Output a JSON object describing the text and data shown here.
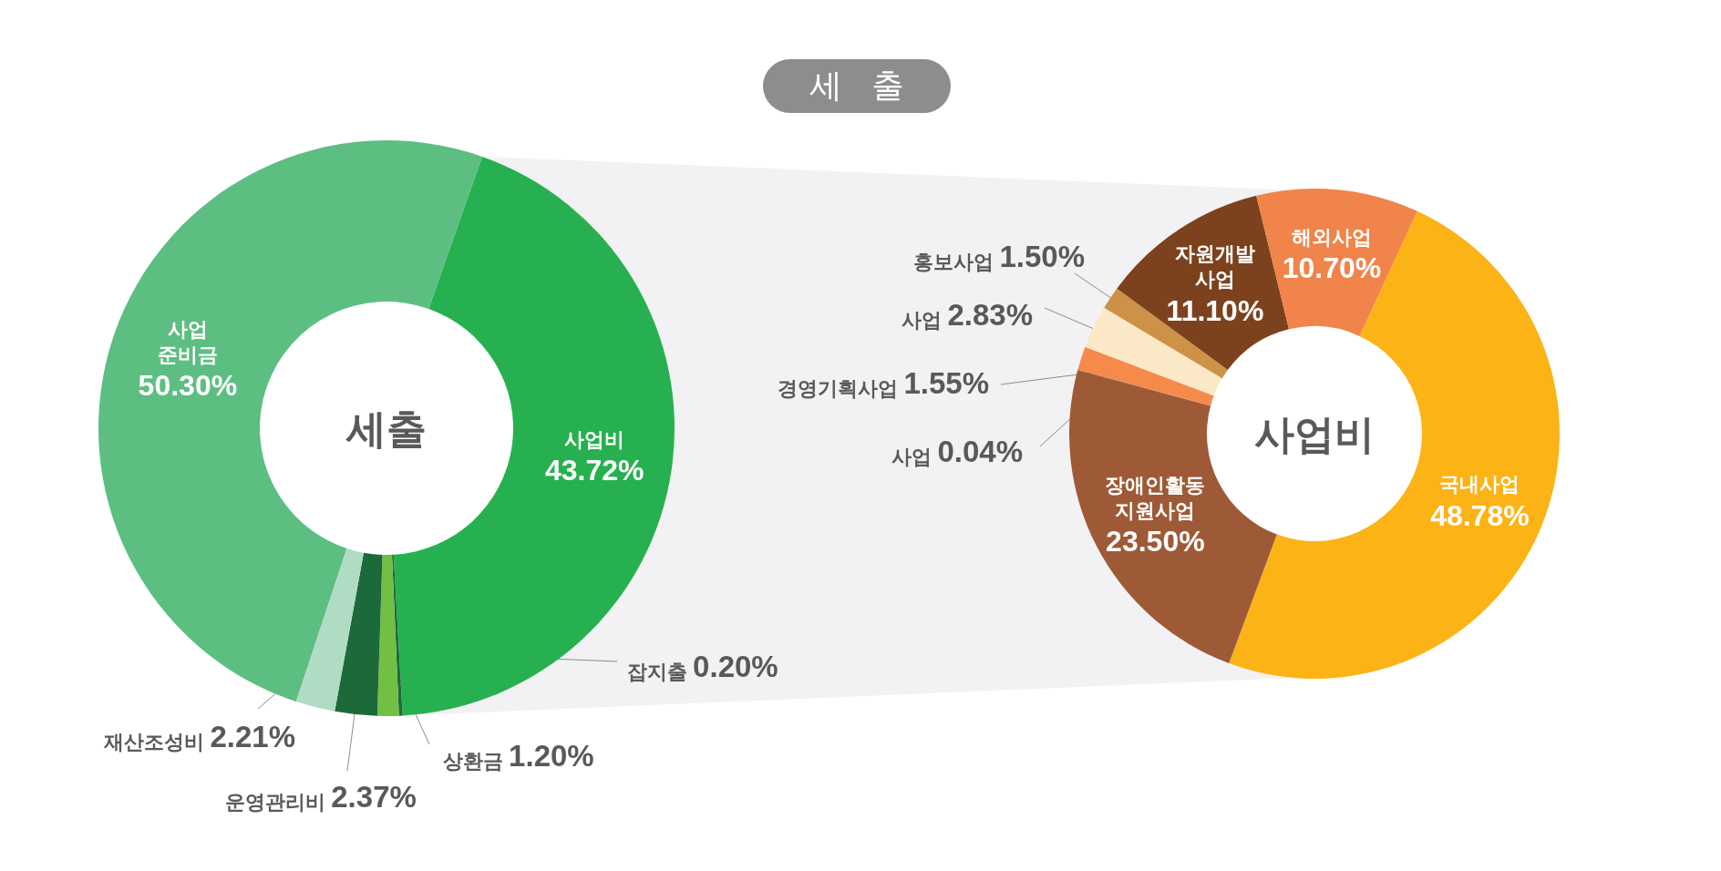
{
  "chart_data": [
    {
      "type": "donut",
      "title": "세 출",
      "annotations": [
        "세출"
      ],
      "categories": [
        "사업비",
        "잡지출",
        "상환금",
        "운영관리비",
        "재산조성비",
        "사업\n준비금"
      ],
      "values": [
        43.72,
        0.2,
        1.2,
        2.37,
        2.21,
        50.3
      ],
      "value_labels": [
        "43.72%",
        "0.20%",
        "1.20%",
        "2.37%",
        "2.21%",
        "50.30%"
      ],
      "colors": [
        "#27b04f",
        "#1d6b3b",
        "#72bf44",
        "#1c6a3a",
        "#b0dcc4",
        "#5dbe82"
      ]
    },
    {
      "type": "donut",
      "annotations": [
        "사업비"
      ],
      "categories": [
        "국내사업",
        "장애인활동\n지원사업",
        "사업",
        "경영기획사업",
        "사업",
        "홍보사업",
        "자원개발\n사업",
        "해외사업"
      ],
      "values": [
        48.78,
        23.5,
        0.04,
        1.55,
        2.83,
        1.5,
        11.1,
        10.7
      ],
      "value_labels": [
        "48.78%",
        "23.50%",
        "0.04%",
        "1.55%",
        "2.83%",
        "1.50%",
        "11.10%",
        "10.70%"
      ],
      "colors": [
        "#fcb316",
        "#9e5a36",
        "#8c4a2a",
        "#f68a4b",
        "#fbe8c6",
        "#cd9148",
        "#7c421d",
        "#f0844a"
      ]
    }
  ]
}
